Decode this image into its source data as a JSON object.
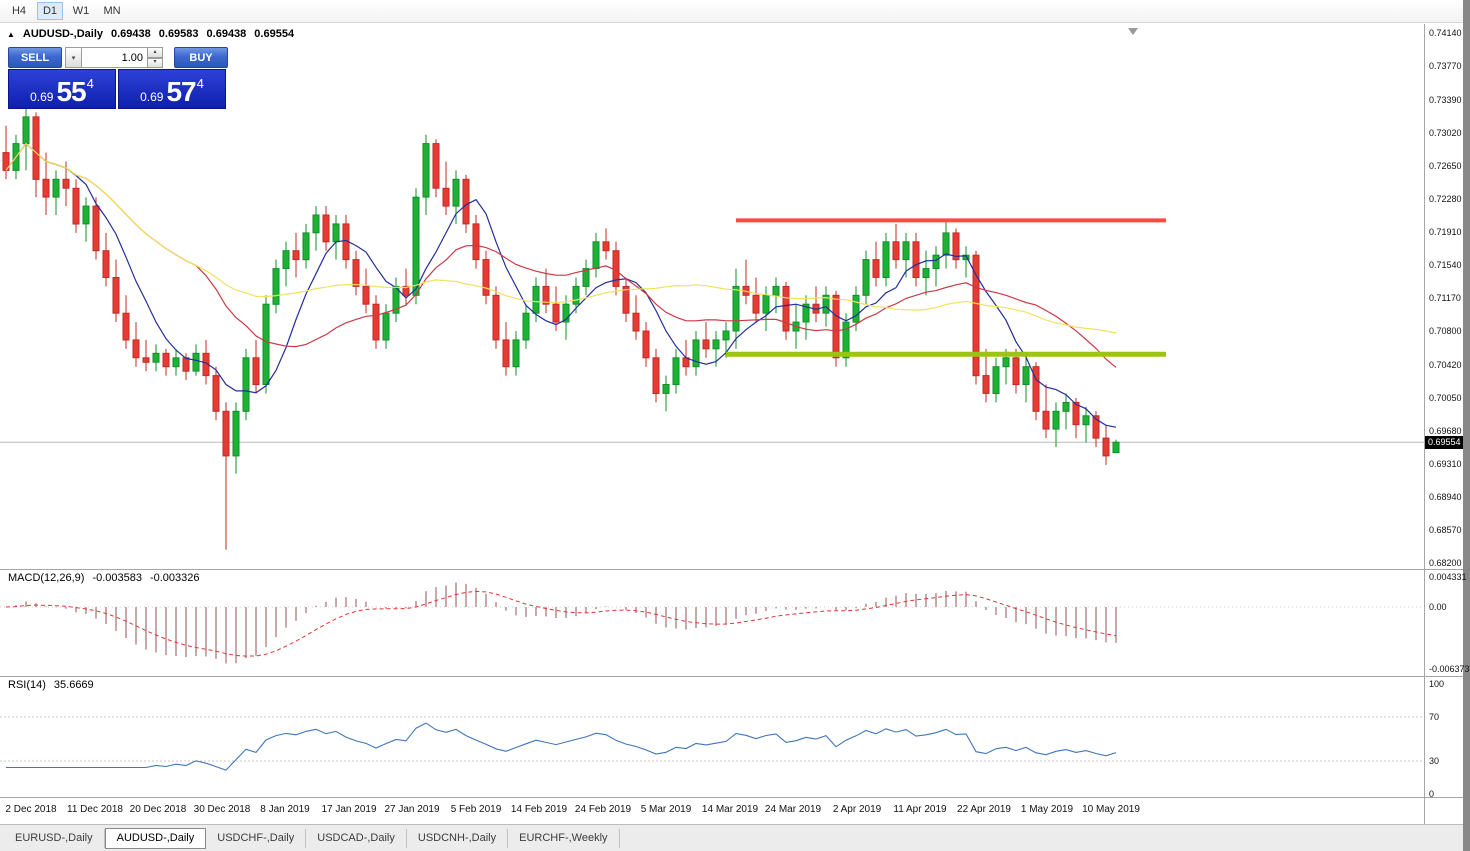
{
  "icons": {
    "triangle_up": "▲",
    "chevron_down": "▾",
    "chevron_up": "▴"
  },
  "toolbar": {
    "timeframes": [
      {
        "label": "H4",
        "active": false
      },
      {
        "label": "D1",
        "active": true
      },
      {
        "label": "W1",
        "active": false
      },
      {
        "label": "MN",
        "active": false
      }
    ]
  },
  "chart": {
    "title": "AUDUSD-,Daily",
    "ohlc": {
      "open": "0.69438",
      "high": "0.69583",
      "low": "0.69438",
      "close": "0.69554"
    },
    "trade_panel": {
      "sell_label": "SELL",
      "buy_label": "BUY",
      "volume": "1.00",
      "sell_price": {
        "prefix": "0.69",
        "big": "55",
        "sup": "4"
      },
      "buy_price": {
        "prefix": "0.69",
        "big": "57",
        "sup": "4"
      }
    },
    "price_axis": {
      "current": "0.69554"
    }
  },
  "chart_data": {
    "type": "candlestick",
    "title": "AUDUSD-,Daily",
    "x_labels": [
      "2 Dec 2018",
      "11 Dec 2018",
      "20 Dec 2018",
      "30 Dec 2018",
      "8 Jan 2019",
      "17 Jan 2019",
      "27 Jan 2019",
      "5 Feb 2019",
      "14 Feb 2019",
      "24 Feb 2019",
      "5 Mar 2019",
      "14 Mar 2019",
      "24 Mar 2019",
      "2 Apr 2019",
      "11 Apr 2019",
      "22 Apr 2019",
      "1 May 2019",
      "10 May 2019"
    ],
    "y_axis": {
      "max": 0.7414,
      "min": 0.682,
      "ticks": [
        "0.74140",
        "0.73770",
        "0.73390",
        "0.73020",
        "0.72650",
        "0.72280",
        "0.71910",
        "0.71540",
        "0.71170",
        "0.70800",
        "0.70420",
        "0.70050",
        "0.69680",
        "0.69310",
        "0.68940",
        "0.68570",
        "0.68200"
      ]
    },
    "candles": [
      [
        0.728,
        0.731,
        0.725,
        0.726
      ],
      [
        0.726,
        0.73,
        0.725,
        0.729
      ],
      [
        0.729,
        0.733,
        0.726,
        0.732
      ],
      [
        0.732,
        0.7325,
        0.723,
        0.725
      ],
      [
        0.725,
        0.728,
        0.721,
        0.723
      ],
      [
        0.723,
        0.726,
        0.721,
        0.725
      ],
      [
        0.725,
        0.727,
        0.722,
        0.724
      ],
      [
        0.724,
        0.725,
        0.719,
        0.72
      ],
      [
        0.72,
        0.723,
        0.718,
        0.722
      ],
      [
        0.722,
        0.723,
        0.716,
        0.717
      ],
      [
        0.717,
        0.719,
        0.713,
        0.714
      ],
      [
        0.714,
        0.716,
        0.709,
        0.71
      ],
      [
        0.71,
        0.712,
        0.706,
        0.707
      ],
      [
        0.707,
        0.709,
        0.704,
        0.705
      ],
      [
        0.705,
        0.707,
        0.7035,
        0.7045
      ],
      [
        0.7045,
        0.7065,
        0.7035,
        0.7055
      ],
      [
        0.7055,
        0.706,
        0.703,
        0.704
      ],
      [
        0.704,
        0.706,
        0.703,
        0.705
      ],
      [
        0.705,
        0.7055,
        0.7025,
        0.7035
      ],
      [
        0.7035,
        0.7065,
        0.703,
        0.7055
      ],
      [
        0.7055,
        0.707,
        0.702,
        0.703
      ],
      [
        0.703,
        0.704,
        0.698,
        0.699
      ],
      [
        0.699,
        0.7,
        0.6835,
        0.694
      ],
      [
        0.694,
        0.7,
        0.692,
        0.699
      ],
      [
        0.699,
        0.706,
        0.698,
        0.705
      ],
      [
        0.705,
        0.707,
        0.701,
        0.702
      ],
      [
        0.702,
        0.712,
        0.701,
        0.711
      ],
      [
        0.711,
        0.716,
        0.71,
        0.715
      ],
      [
        0.715,
        0.718,
        0.713,
        0.717
      ],
      [
        0.717,
        0.719,
        0.714,
        0.716
      ],
      [
        0.716,
        0.72,
        0.715,
        0.719
      ],
      [
        0.719,
        0.722,
        0.717,
        0.721
      ],
      [
        0.721,
        0.722,
        0.717,
        0.718
      ],
      [
        0.718,
        0.721,
        0.716,
        0.72
      ],
      [
        0.72,
        0.721,
        0.715,
        0.716
      ],
      [
        0.716,
        0.717,
        0.712,
        0.713
      ],
      [
        0.713,
        0.715,
        0.71,
        0.711
      ],
      [
        0.711,
        0.712,
        0.706,
        0.707
      ],
      [
        0.707,
        0.711,
        0.706,
        0.71
      ],
      [
        0.71,
        0.714,
        0.709,
        0.713
      ],
      [
        0.713,
        0.715,
        0.711,
        0.712
      ],
      [
        0.712,
        0.724,
        0.711,
        0.723
      ],
      [
        0.723,
        0.73,
        0.721,
        0.729
      ],
      [
        0.729,
        0.7295,
        0.723,
        0.724
      ],
      [
        0.724,
        0.727,
        0.721,
        0.722
      ],
      [
        0.722,
        0.726,
        0.72,
        0.725
      ],
      [
        0.725,
        0.7255,
        0.719,
        0.72
      ],
      [
        0.72,
        0.721,
        0.715,
        0.716
      ],
      [
        0.716,
        0.717,
        0.711,
        0.712
      ],
      [
        0.712,
        0.713,
        0.706,
        0.707
      ],
      [
        0.707,
        0.709,
        0.703,
        0.704
      ],
      [
        0.704,
        0.708,
        0.703,
        0.707
      ],
      [
        0.707,
        0.711,
        0.706,
        0.71
      ],
      [
        0.71,
        0.714,
        0.709,
        0.713
      ],
      [
        0.713,
        0.715,
        0.71,
        0.711
      ],
      [
        0.711,
        0.713,
        0.708,
        0.709
      ],
      [
        0.709,
        0.712,
        0.707,
        0.711
      ],
      [
        0.711,
        0.714,
        0.71,
        0.713
      ],
      [
        0.713,
        0.716,
        0.712,
        0.715
      ],
      [
        0.715,
        0.719,
        0.714,
        0.718
      ],
      [
        0.718,
        0.7195,
        0.716,
        0.717
      ],
      [
        0.717,
        0.718,
        0.712,
        0.713
      ],
      [
        0.713,
        0.714,
        0.709,
        0.71
      ],
      [
        0.71,
        0.712,
        0.707,
        0.708
      ],
      [
        0.708,
        0.709,
        0.704,
        0.705
      ],
      [
        0.705,
        0.706,
        0.7,
        0.701
      ],
      [
        0.701,
        0.703,
        0.699,
        0.702
      ],
      [
        0.702,
        0.706,
        0.701,
        0.705
      ],
      [
        0.705,
        0.707,
        0.703,
        0.704
      ],
      [
        0.704,
        0.708,
        0.703,
        0.707
      ],
      [
        0.707,
        0.709,
        0.705,
        0.706
      ],
      [
        0.706,
        0.708,
        0.704,
        0.707
      ],
      [
        0.707,
        0.709,
        0.705,
        0.708
      ],
      [
        0.708,
        0.715,
        0.706,
        0.713
      ],
      [
        0.713,
        0.716,
        0.711,
        0.712
      ],
      [
        0.712,
        0.714,
        0.709,
        0.71
      ],
      [
        0.71,
        0.713,
        0.708,
        0.712
      ],
      [
        0.712,
        0.714,
        0.71,
        0.713
      ],
      [
        0.713,
        0.7135,
        0.707,
        0.708
      ],
      [
        0.708,
        0.711,
        0.706,
        0.709
      ],
      [
        0.709,
        0.712,
        0.707,
        0.711
      ],
      [
        0.711,
        0.713,
        0.709,
        0.71
      ],
      [
        0.71,
        0.713,
        0.7085,
        0.712
      ],
      [
        0.712,
        0.7125,
        0.704,
        0.705
      ],
      [
        0.705,
        0.71,
        0.704,
        0.709
      ],
      [
        0.709,
        0.713,
        0.708,
        0.712
      ],
      [
        0.712,
        0.717,
        0.711,
        0.716
      ],
      [
        0.716,
        0.718,
        0.713,
        0.714
      ],
      [
        0.714,
        0.719,
        0.713,
        0.718
      ],
      [
        0.718,
        0.72,
        0.715,
        0.716
      ],
      [
        0.716,
        0.719,
        0.714,
        0.718
      ],
      [
        0.718,
        0.719,
        0.713,
        0.714
      ],
      [
        0.714,
        0.717,
        0.712,
        0.715
      ],
      [
        0.715,
        0.7175,
        0.713,
        0.7165
      ],
      [
        0.7165,
        0.7205,
        0.715,
        0.719
      ],
      [
        0.719,
        0.7195,
        0.715,
        0.716
      ],
      [
        0.716,
        0.7175,
        0.714,
        0.7165
      ],
      [
        0.7165,
        0.717,
        0.702,
        0.703
      ],
      [
        0.703,
        0.706,
        0.7,
        0.701
      ],
      [
        0.701,
        0.705,
        0.7,
        0.704
      ],
      [
        0.704,
        0.706,
        0.702,
        0.705
      ],
      [
        0.705,
        0.706,
        0.701,
        0.702
      ],
      [
        0.702,
        0.705,
        0.7,
        0.704
      ],
      [
        0.704,
        0.7045,
        0.698,
        0.699
      ],
      [
        0.699,
        0.702,
        0.696,
        0.697
      ],
      [
        0.697,
        0.7,
        0.695,
        0.699
      ],
      [
        0.699,
        0.701,
        0.697,
        0.7
      ],
      [
        0.7,
        0.7005,
        0.696,
        0.6975
      ],
      [
        0.6975,
        0.6995,
        0.6955,
        0.6985
      ],
      [
        0.6985,
        0.699,
        0.695,
        0.696
      ],
      [
        0.696,
        0.6975,
        0.693,
        0.694
      ],
      [
        0.69438,
        0.69583,
        0.69438,
        0.69554
      ]
    ],
    "moving_averages": [
      {
        "name": "ma-fast",
        "period": 7,
        "color": "#232e9b"
      },
      {
        "name": "ma-medium",
        "period": 20,
        "color": "#cc3947"
      },
      {
        "name": "ma-slow",
        "period": 44,
        "color": "#efe35e"
      }
    ],
    "overlays": {
      "resistance": {
        "price": 0.7204,
        "from_index": 73,
        "to_index": 116,
        "color": "#fa4b42"
      },
      "support": {
        "price": 0.7054,
        "from_index": 72,
        "to_index": 116,
        "color": "#9dc412"
      }
    },
    "indicators": {
      "macd": {
        "label": "MACD(12,26,9)",
        "fast": 12,
        "slow": 26,
        "signal": 9,
        "values": [
          "-0.003583",
          "-0.003326"
        ],
        "axis_labels": [
          "0.004331",
          "0.00",
          "-0.006373"
        ]
      },
      "rsi": {
        "label": "RSI(14)",
        "period": 14,
        "value": "35.6669",
        "levels": [
          70,
          30
        ],
        "axis_labels": [
          "100",
          "70",
          "30",
          "0"
        ],
        "axis_values": [
          100,
          70,
          30,
          0
        ]
      }
    },
    "colors": {
      "bull": "#1fb135",
      "bull_border": "#0e8f28",
      "bear": "#e63a35",
      "bear_border": "#c22b22",
      "bid_line": "#bbbbbb",
      "macd_hist": "#c8a8a8",
      "macd_signal": "#e03535",
      "rsi": "#3f76b8",
      "level_line": "#c9c9c9"
    }
  },
  "tabs": [
    {
      "label": "EURUSD-,Daily",
      "active": false
    },
    {
      "label": "AUDUSD-,Daily",
      "active": true
    },
    {
      "label": "USDCHF-,Daily",
      "active": false
    },
    {
      "label": "USDCAD-,Daily",
      "active": false
    },
    {
      "label": "USDCNH-,Daily",
      "active": false
    },
    {
      "label": "EURCHF-,Weekly",
      "active": false
    }
  ]
}
